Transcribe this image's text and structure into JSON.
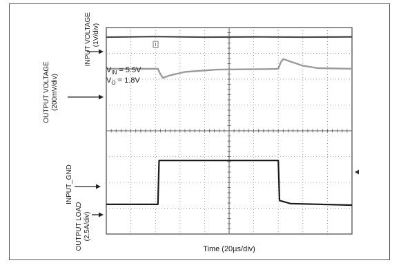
{
  "chart_data": {
    "type": "line",
    "x_unit": "div",
    "x_divisions": 10,
    "y_divisions": 8,
    "xlabel": "Time (20µs/div)",
    "annotation": {
      "vin_prefix": "V",
      "vin_sub": "IN",
      "vin_value": " = 5.5V",
      "vo_prefix": "V",
      "vo_sub": "O",
      "vo_value": " = 1.8V"
    },
    "channel_labels": {
      "input_voltage": {
        "name": "INPUT VOLTAGE",
        "scale": "(1V/div)"
      },
      "output_voltage": {
        "name": "OUTPUT VOLTAGE",
        "scale": "(200mV/div)"
      },
      "input_gnd": {
        "name": "INPUT_GND"
      },
      "output_load": {
        "name": "OUTPUT LOAD",
        "scale": "(2.5A/div)"
      }
    },
    "series": [
      {
        "name": "INPUT VOLTAGE",
        "color": "#505050",
        "points": [
          [
            0,
            0.37
          ],
          [
            2,
            0.35
          ],
          [
            4,
            0.37
          ],
          [
            6,
            0.36
          ],
          [
            8,
            0.37
          ],
          [
            10,
            0.36
          ]
        ]
      },
      {
        "name": "OUTPUT VOLTAGE",
        "color": "#9a9a9a",
        "points": [
          [
            0,
            1.6
          ],
          [
            2.1,
            1.6
          ],
          [
            2.2,
            1.8
          ],
          [
            2.3,
            1.95
          ],
          [
            2.6,
            1.85
          ],
          [
            3.2,
            1.72
          ],
          [
            4.5,
            1.63
          ],
          [
            6.5,
            1.61
          ],
          [
            7.0,
            1.6
          ],
          [
            7.1,
            1.35
          ],
          [
            7.2,
            1.22
          ],
          [
            7.5,
            1.32
          ],
          [
            8.0,
            1.48
          ],
          [
            8.6,
            1.57
          ],
          [
            10,
            1.6
          ]
        ]
      },
      {
        "name": "OUTPUT LOAD",
        "color": "#1a1a1a",
        "points": [
          [
            0,
            6.85
          ],
          [
            2.1,
            6.85
          ],
          [
            2.15,
            5.15
          ],
          [
            7.0,
            5.15
          ],
          [
            7.05,
            6.7
          ],
          [
            7.5,
            6.82
          ],
          [
            10,
            6.88
          ]
        ]
      }
    ]
  }
}
